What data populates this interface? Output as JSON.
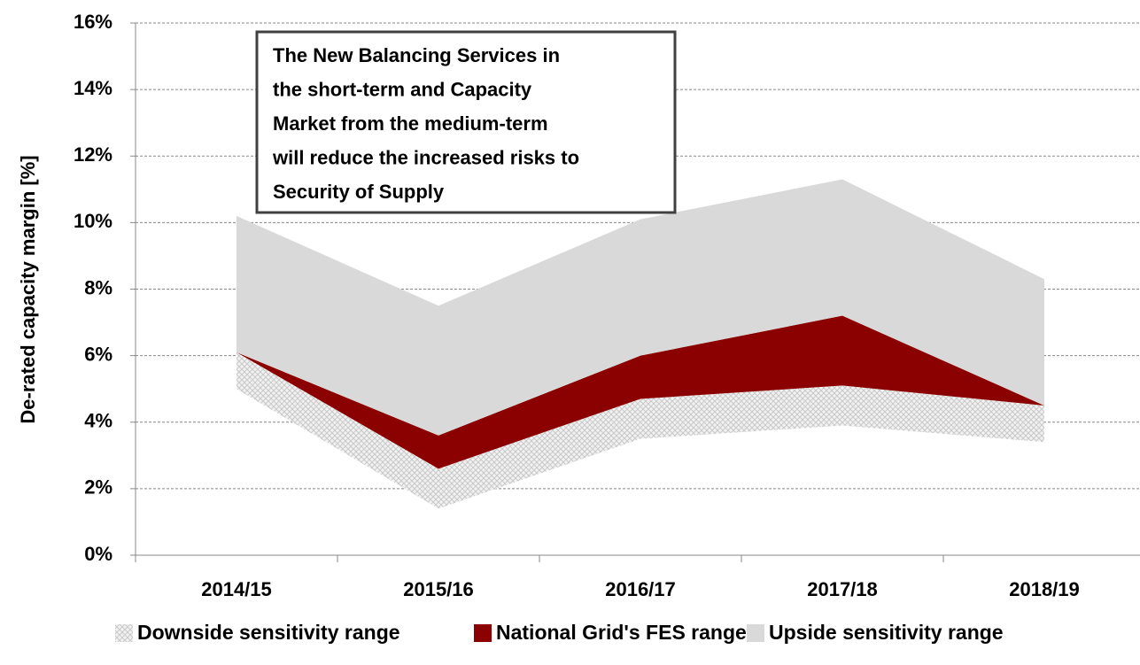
{
  "chart_data": {
    "type": "stacked_area",
    "y_label": "De-rated capacity margin [%]",
    "annotation": [
      "The New Balancing Services in",
      "the short-term and Capacity",
      "Market from the medium-term",
      "will reduce the increased risks to",
      "Security of Supply"
    ],
    "categories": [
      "2014/15",
      "2015/16",
      "2016/17",
      "2017/18",
      "2018/19"
    ],
    "baseline": [
      5.0,
      1.4,
      3.5,
      3.9,
      3.4
    ],
    "series": [
      {
        "name": "Downside sensitivity range",
        "color": "#d9d9d9",
        "pattern": "crosshatch",
        "values": [
          1.1,
          1.2,
          1.2,
          1.2,
          1.1
        ]
      },
      {
        "name": "National Grid's FES range",
        "color": "#8b0000",
        "values": [
          0,
          1.0,
          1.3,
          2.1,
          0
        ]
      },
      {
        "name": "Upside sensitivity range",
        "color": "#d9d9d9",
        "values": [
          4.1,
          3.9,
          4.1,
          4.1,
          3.8
        ]
      }
    ],
    "ylim": [
      0,
      16
    ],
    "yticks": [
      {
        "value": 0,
        "label": "0%"
      },
      {
        "value": 2,
        "label": "2%"
      },
      {
        "value": 4,
        "label": "4%"
      },
      {
        "value": 6,
        "label": "6%"
      },
      {
        "value": 8,
        "label": "8%"
      },
      {
        "value": 10,
        "label": "10%"
      },
      {
        "value": 12,
        "label": "12%"
      },
      {
        "value": 14,
        "label": "14%"
      },
      {
        "value": 16,
        "label": "16%"
      }
    ],
    "grid": true
  }
}
